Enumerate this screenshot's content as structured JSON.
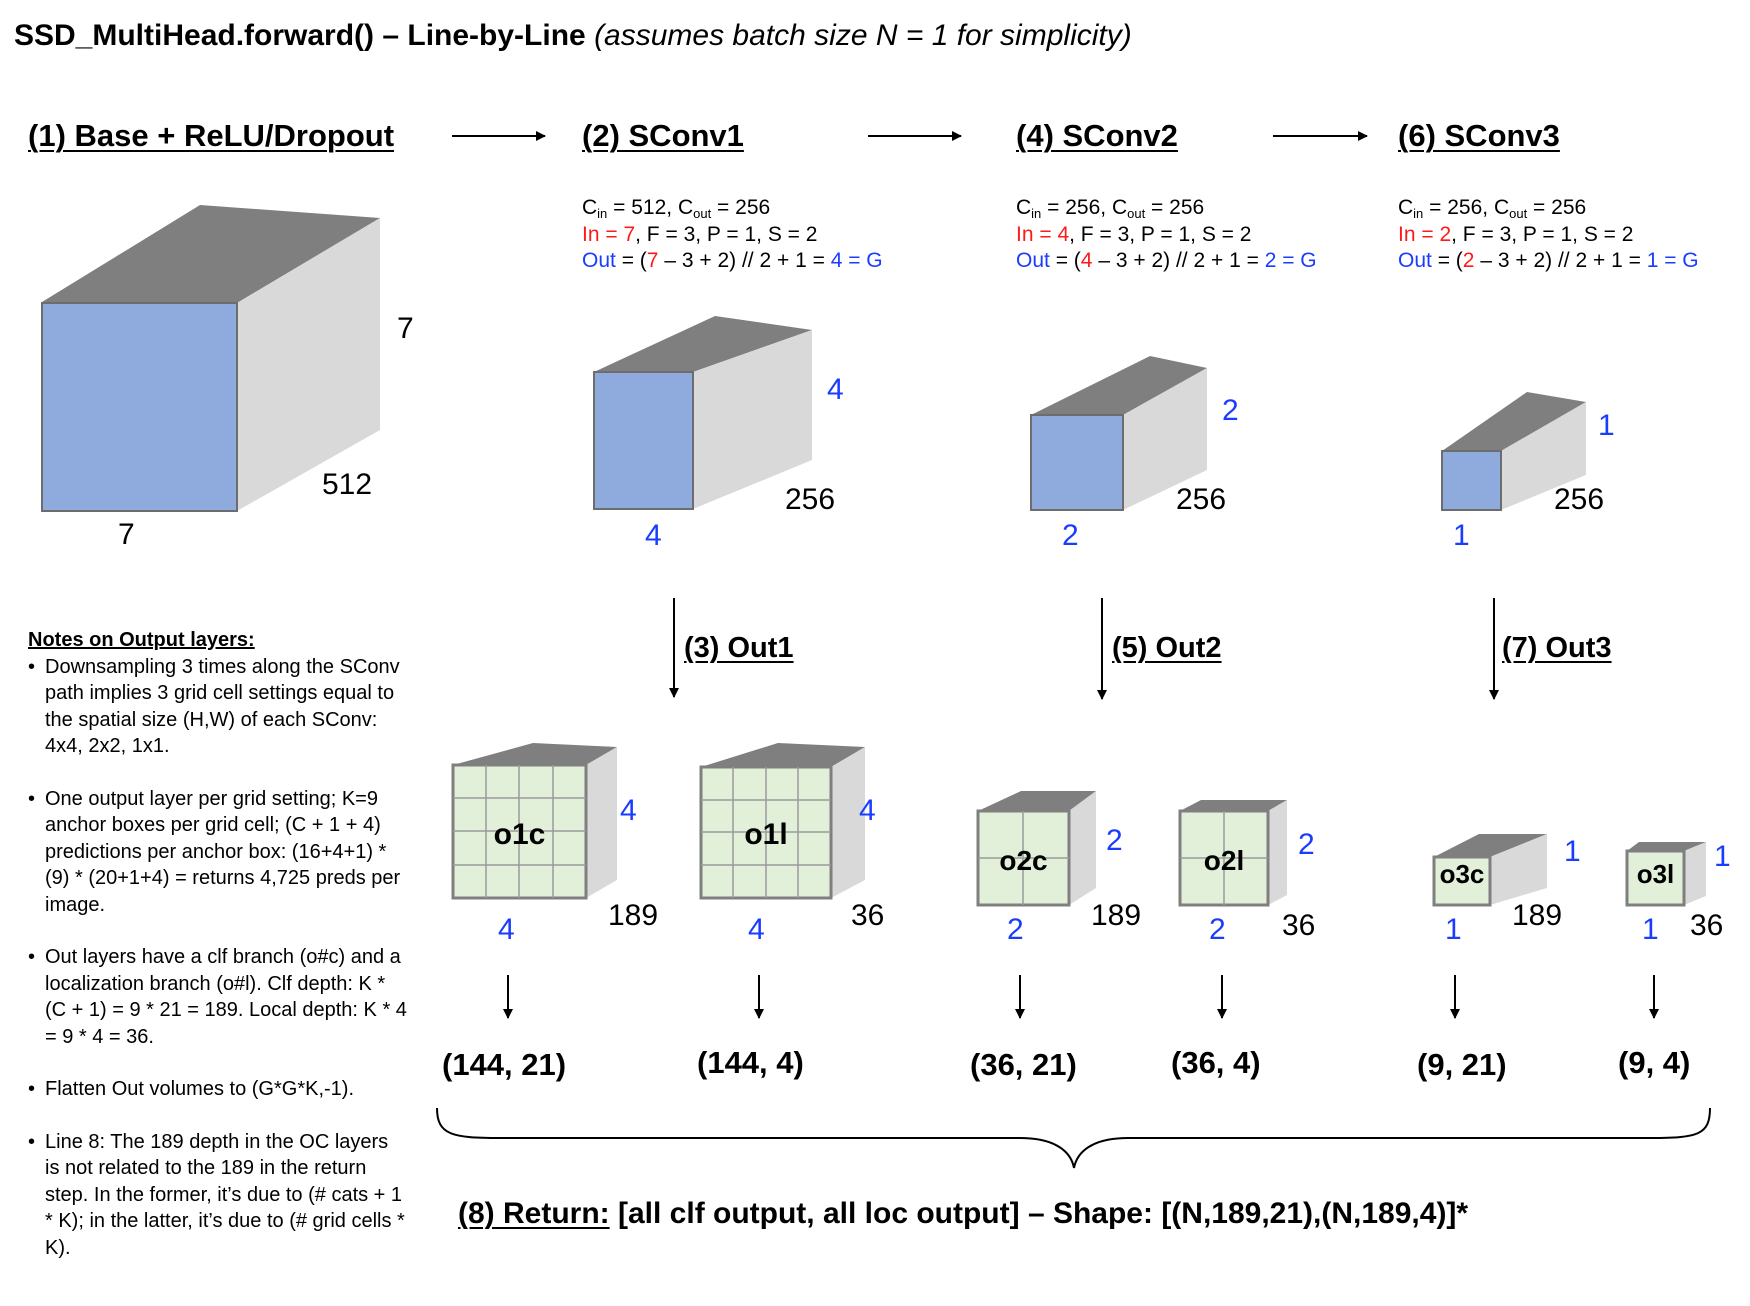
{
  "title": {
    "main": "SSD_MultiHead.forward() – Line-by-Line",
    "sub": "(assumes batch size N = 1 for simplicity)"
  },
  "base": {
    "label": "(1) Base + ReLU/Dropout",
    "height": "7",
    "width": "7",
    "depth": "512"
  },
  "sconv": [
    {
      "label": "(2) SConv1",
      "c_in": "512",
      "c_out": "256",
      "in_val": "7",
      "params": ", F = 3, P = 1, S = 2",
      "out_val": "4",
      "h": "4",
      "w": "4",
      "depth": "256"
    },
    {
      "label": "(4) SConv2",
      "c_in": "256",
      "c_out": "256",
      "in_val": "4",
      "params": ", F = 3, P = 1, S = 2",
      "out_val": "2",
      "h": "2",
      "w": "2",
      "depth": "256"
    },
    {
      "label": "(6) SConv3",
      "c_in": "256",
      "c_out": "256",
      "in_val": "2",
      "params": ", F = 3, P = 1, S = 2",
      "out_val": "1",
      "h": "1",
      "w": "1",
      "depth": "256"
    }
  ],
  "formula": {
    "c_prefix": "C",
    "c_in_sub": "in",
    "c_out_sub": "out",
    "in_prefix": "In = ",
    "out_prefix": "Out",
    "out_mid1": " = (",
    "out_mid2": " – 3 + 2) // 2 + 1 = ",
    "out_suffix": " = G"
  },
  "out_labels": [
    "(3) Out1",
    "(5) Out2",
    "(7) Out3"
  ],
  "out_blocks": [
    {
      "name": "o1c",
      "h": "4",
      "w": "4",
      "depth": "189",
      "shape": "(144, 21)"
    },
    {
      "name": "o1l",
      "h": "4",
      "w": "4",
      "depth": "36",
      "shape": "(144, 4)"
    },
    {
      "name": "o2c",
      "h": "2",
      "w": "2",
      "depth": "189",
      "shape": "(36, 21)"
    },
    {
      "name": "o2l",
      "h": "2",
      "w": "2",
      "depth": "36",
      "shape": "(36, 4)"
    },
    {
      "name": "o3c",
      "h": "1",
      "w": "1",
      "depth": "189",
      "shape": "(9, 21)"
    },
    {
      "name": "o3l",
      "h": "1",
      "w": "1",
      "depth": "36",
      "shape": "(9, 4)"
    }
  ],
  "notes": {
    "title": "Notes on Output layers:",
    "items": [
      "Downsampling 3 times along the SConv path implies 3 grid cell settings equal to the spatial size (H,W) of each SConv: 4x4, 2x2, 1x1.",
      "One output layer per grid setting; K=9 anchor boxes per grid cell; (C + 1 + 4) predictions per anchor box: (16+4+1) * (9) * (20+1+4) = returns 4,725 preds per image.",
      "Out layers have a clf branch (o#c) and a localization branch (o#l). Clf depth: K * (C + 1) = 9 * 21 = 189. Local depth: K * 4 = 9 * 4 = 36.",
      "Flatten Out volumes to (G*G*K,-1).",
      "Line 8: The 189 depth in the OC layers is not related to the 189 in the return step. In the former, it’s due to (# cats + 1 * K); in the latter, it’s due to (# grid cells * K)."
    ]
  },
  "return_step": {
    "label": "(8) Return:",
    "text": " [all clf output, all loc output] – Shape: [(N,189,21),(N,189,4)]*"
  },
  "colors": {
    "front_blue": "#8faadc",
    "front_green": "#e2efd9",
    "top": "#7f7f7f",
    "side": "#d9d9d9",
    "red": "#ff1a1a",
    "blue": "#1a3cff"
  }
}
